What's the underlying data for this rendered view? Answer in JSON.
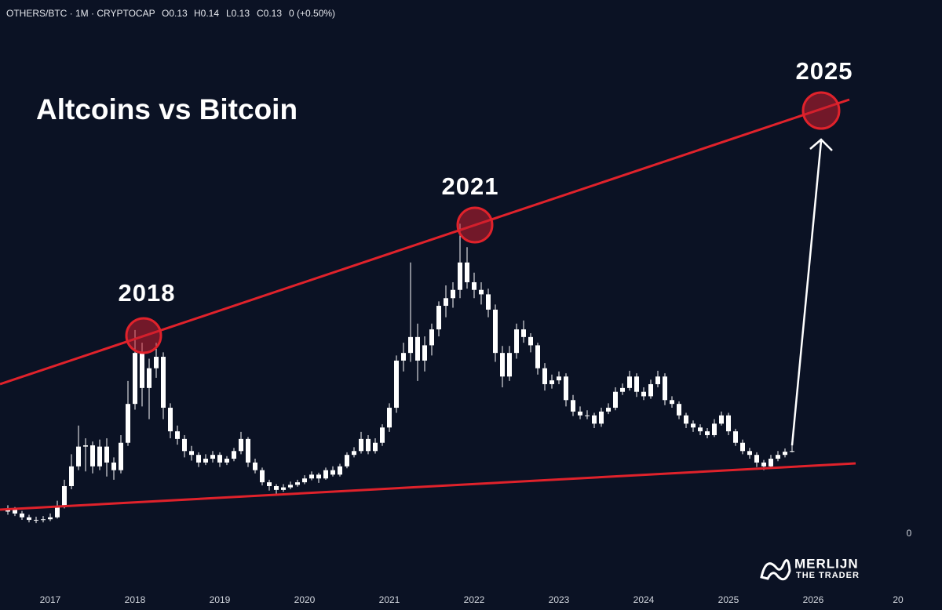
{
  "chart_data": {
    "type": "candlestick",
    "header": {
      "symbol": "OTHERS/BTC · 1M · CRYPTOCAP",
      "open": "O0.13",
      "high": "H0.14",
      "low": "L0.13",
      "close": "C0.13",
      "change": "0 (+0.50%)"
    },
    "title": "Altcoins vs Bitcoin",
    "annotations": [
      "2018",
      "2021",
      "2025"
    ],
    "x_labels": [
      "2017",
      "2018",
      "2019",
      "2020",
      "2021",
      "2022",
      "2023",
      "2024",
      "2025",
      "2026",
      "20"
    ],
    "ylim": [
      -0.085,
      0.838
    ],
    "yticks": [
      0
    ],
    "color": "#ffffff",
    "ohlc": [
      [
        0.035,
        0.045,
        0.03,
        0.038
      ],
      [
        0.038,
        0.042,
        0.028,
        0.032
      ],
      [
        0.032,
        0.036,
        0.022,
        0.026
      ],
      [
        0.026,
        0.03,
        0.018,
        0.022
      ],
      [
        0.022,
        0.027,
        0.017,
        0.022
      ],
      [
        0.022,
        0.028,
        0.018,
        0.023
      ],
      [
        0.023,
        0.032,
        0.02,
        0.026
      ],
      [
        0.026,
        0.052,
        0.024,
        0.044
      ],
      [
        0.044,
        0.085,
        0.04,
        0.075
      ],
      [
        0.075,
        0.125,
        0.07,
        0.106
      ],
      [
        0.106,
        0.17,
        0.1,
        0.137
      ],
      [
        0.137,
        0.15,
        0.098,
        0.139
      ],
      [
        0.139,
        0.145,
        0.095,
        0.106
      ],
      [
        0.106,
        0.148,
        0.1,
        0.137
      ],
      [
        0.137,
        0.15,
        0.09,
        0.112
      ],
      [
        0.112,
        0.12,
        0.085,
        0.1
      ],
      [
        0.1,
        0.155,
        0.095,
        0.143
      ],
      [
        0.143,
        0.24,
        0.138,
        0.204
      ],
      [
        0.204,
        0.32,
        0.195,
        0.284
      ],
      [
        0.284,
        0.3,
        0.2,
        0.229
      ],
      [
        0.229,
        0.275,
        0.18,
        0.26
      ],
      [
        0.26,
        0.3,
        0.245,
        0.278
      ],
      [
        0.278,
        0.285,
        0.18,
        0.198
      ],
      [
        0.198,
        0.205,
        0.15,
        0.161
      ],
      [
        0.161,
        0.17,
        0.14,
        0.149
      ],
      [
        0.149,
        0.155,
        0.12,
        0.13
      ],
      [
        0.13,
        0.138,
        0.115,
        0.124
      ],
      [
        0.124,
        0.128,
        0.105,
        0.112
      ],
      [
        0.112,
        0.125,
        0.108,
        0.118
      ],
      [
        0.118,
        0.13,
        0.112,
        0.124
      ],
      [
        0.124,
        0.128,
        0.105,
        0.112
      ],
      [
        0.112,
        0.122,
        0.108,
        0.118
      ],
      [
        0.118,
        0.135,
        0.114,
        0.13
      ],
      [
        0.13,
        0.16,
        0.125,
        0.149
      ],
      [
        0.149,
        0.152,
        0.105,
        0.112
      ],
      [
        0.112,
        0.118,
        0.095,
        0.1
      ],
      [
        0.1,
        0.104,
        0.076,
        0.081
      ],
      [
        0.081,
        0.085,
        0.068,
        0.075
      ],
      [
        0.075,
        0.078,
        0.062,
        0.069
      ],
      [
        0.069,
        0.078,
        0.066,
        0.073
      ],
      [
        0.073,
        0.082,
        0.07,
        0.077
      ],
      [
        0.077,
        0.085,
        0.074,
        0.081
      ],
      [
        0.081,
        0.092,
        0.078,
        0.087
      ],
      [
        0.087,
        0.098,
        0.084,
        0.093
      ],
      [
        0.093,
        0.096,
        0.08,
        0.087
      ],
      [
        0.087,
        0.104,
        0.085,
        0.1
      ],
      [
        0.1,
        0.106,
        0.09,
        0.093
      ],
      [
        0.093,
        0.11,
        0.09,
        0.106
      ],
      [
        0.106,
        0.128,
        0.103,
        0.124
      ],
      [
        0.124,
        0.136,
        0.12,
        0.13
      ],
      [
        0.13,
        0.16,
        0.126,
        0.149
      ],
      [
        0.149,
        0.155,
        0.125,
        0.13
      ],
      [
        0.13,
        0.15,
        0.126,
        0.143
      ],
      [
        0.143,
        0.172,
        0.138,
        0.167
      ],
      [
        0.167,
        0.205,
        0.16,
        0.198
      ],
      [
        0.198,
        0.28,
        0.19,
        0.272
      ],
      [
        0.272,
        0.3,
        0.255,
        0.284
      ],
      [
        0.284,
        0.426,
        0.27,
        0.309
      ],
      [
        0.309,
        0.33,
        0.24,
        0.272
      ],
      [
        0.272,
        0.31,
        0.255,
        0.296
      ],
      [
        0.296,
        0.33,
        0.28,
        0.321
      ],
      [
        0.321,
        0.365,
        0.31,
        0.358
      ],
      [
        0.358,
        0.39,
        0.34,
        0.37
      ],
      [
        0.37,
        0.395,
        0.355,
        0.383
      ],
      [
        0.383,
        0.487,
        0.37,
        0.426
      ],
      [
        0.426,
        0.45,
        0.385,
        0.395
      ],
      [
        0.395,
        0.41,
        0.37,
        0.383
      ],
      [
        0.383,
        0.395,
        0.36,
        0.376
      ],
      [
        0.376,
        0.385,
        0.34,
        0.352
      ],
      [
        0.352,
        0.36,
        0.27,
        0.284
      ],
      [
        0.284,
        0.295,
        0.23,
        0.247
      ],
      [
        0.247,
        0.295,
        0.24,
        0.284
      ],
      [
        0.284,
        0.33,
        0.275,
        0.321
      ],
      [
        0.321,
        0.335,
        0.3,
        0.309
      ],
      [
        0.309,
        0.315,
        0.285,
        0.296
      ],
      [
        0.296,
        0.3,
        0.25,
        0.26
      ],
      [
        0.26,
        0.268,
        0.225,
        0.235
      ],
      [
        0.235,
        0.25,
        0.228,
        0.241
      ],
      [
        0.241,
        0.255,
        0.235,
        0.247
      ],
      [
        0.247,
        0.252,
        0.2,
        0.21
      ],
      [
        0.21,
        0.218,
        0.185,
        0.192
      ],
      [
        0.192,
        0.2,
        0.18,
        0.186
      ],
      [
        0.186,
        0.194,
        0.18,
        0.186
      ],
      [
        0.186,
        0.19,
        0.166,
        0.173
      ],
      [
        0.173,
        0.198,
        0.168,
        0.192
      ],
      [
        0.192,
        0.205,
        0.188,
        0.198
      ],
      [
        0.198,
        0.23,
        0.194,
        0.223
      ],
      [
        0.223,
        0.236,
        0.218,
        0.229
      ],
      [
        0.229,
        0.256,
        0.225,
        0.247
      ],
      [
        0.247,
        0.252,
        0.215,
        0.223
      ],
      [
        0.223,
        0.23,
        0.21,
        0.216
      ],
      [
        0.216,
        0.242,
        0.212,
        0.235
      ],
      [
        0.235,
        0.256,
        0.23,
        0.247
      ],
      [
        0.247,
        0.252,
        0.202,
        0.21
      ],
      [
        0.21,
        0.216,
        0.198,
        0.204
      ],
      [
        0.204,
        0.208,
        0.18,
        0.186
      ],
      [
        0.186,
        0.19,
        0.166,
        0.173
      ],
      [
        0.173,
        0.178,
        0.16,
        0.167
      ],
      [
        0.167,
        0.172,
        0.155,
        0.161
      ],
      [
        0.161,
        0.166,
        0.15,
        0.155
      ],
      [
        0.155,
        0.18,
        0.152,
        0.173
      ],
      [
        0.173,
        0.192,
        0.17,
        0.186
      ],
      [
        0.186,
        0.19,
        0.155,
        0.161
      ],
      [
        0.161,
        0.165,
        0.138,
        0.143
      ],
      [
        0.143,
        0.148,
        0.125,
        0.13
      ],
      [
        0.13,
        0.135,
        0.118,
        0.124
      ],
      [
        0.124,
        0.128,
        0.105,
        0.112
      ],
      [
        0.112,
        0.116,
        0.1,
        0.106
      ],
      [
        0.106,
        0.124,
        0.103,
        0.118
      ],
      [
        0.118,
        0.13,
        0.114,
        0.124
      ],
      [
        0.124,
        0.134,
        0.12,
        0.129
      ],
      [
        0.129,
        0.14,
        0.128,
        0.13
      ]
    ],
    "logo": {
      "name": "MERLIJN",
      "tagline": "THE TRADER"
    }
  }
}
